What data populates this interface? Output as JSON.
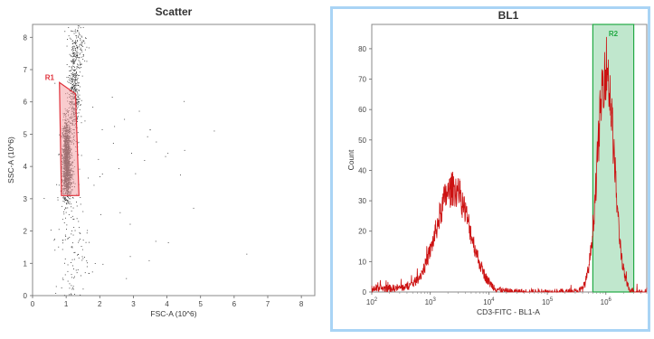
{
  "chart_data": [
    {
      "type": "scatter",
      "title": "Scatter",
      "xlabel": "FSC-A (10^6)",
      "ylabel": "SSC-A (10^6)",
      "xlim": [
        0,
        8.4
      ],
      "ylim": [
        0,
        8.4
      ],
      "x_ticks": [
        "0",
        "1",
        "2",
        "3",
        "4",
        "5",
        "6",
        "7",
        "8"
      ],
      "y_ticks": [
        "0",
        "1",
        "2",
        "3",
        "4",
        "5",
        "6",
        "7",
        "8"
      ],
      "grid": false,
      "point_color": "#333333",
      "clusters": [
        {
          "x": 1.0,
          "y": 4.3,
          "sx": 0.06,
          "sy": 0.6,
          "n": 1200
        },
        {
          "x": 1.05,
          "y": 3.6,
          "sx": 0.07,
          "sy": 0.3,
          "n": 250
        },
        {
          "x": 1.22,
          "y": 6.3,
          "sx": 0.08,
          "sy": 0.9,
          "n": 450
        },
        {
          "x": 1.35,
          "y": 7.7,
          "sx": 0.12,
          "sy": 0.4,
          "n": 110
        },
        {
          "x": 1.15,
          "y": 1.6,
          "sx": 0.25,
          "sy": 1.4,
          "n": 160
        },
        {
          "x": 2.4,
          "y": 3.5,
          "sx": 1.2,
          "sy": 2.2,
          "n": 45
        }
      ],
      "gate": {
        "name": "R1",
        "color": "#e0303a",
        "fill": "#f4a3a6",
        "vertices": [
          [
            0.8,
            6.6
          ],
          [
            1.28,
            6.25
          ],
          [
            1.38,
            3.1
          ],
          [
            0.86,
            3.1
          ]
        ]
      }
    },
    {
      "type": "line",
      "title": "BL1",
      "xlabel": "CD3-FITC - BL1-A",
      "ylabel": "Count",
      "xscale": "log",
      "xlim": [
        100,
        5000000
      ],
      "ylim": [
        0,
        88
      ],
      "x_ticks": [
        {
          "base": "10",
          "exp": "2"
        },
        {
          "base": "10",
          "exp": "3"
        },
        {
          "base": "10",
          "exp": "4"
        },
        {
          "base": "10",
          "exp": "5"
        },
        {
          "base": "10",
          "exp": "6"
        }
      ],
      "y_ticks": [
        "0",
        "10",
        "20",
        "30",
        "40",
        "50",
        "60",
        "70",
        "80"
      ],
      "series_color": "#cc1111",
      "peaks": [
        {
          "center": 2500,
          "height": 34,
          "width": 0.28
        },
        {
          "center": 1000000,
          "height": 74,
          "width": 0.14
        }
      ],
      "gate": {
        "name": "R2",
        "color": "#22aa44",
        "fill": "#b5e3c4",
        "range": [
          600000,
          3000000
        ]
      }
    }
  ]
}
